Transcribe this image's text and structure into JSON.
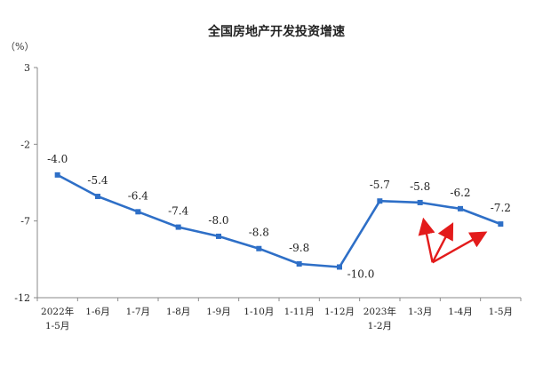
{
  "chart_data": {
    "type": "line",
    "title": "全国房地产开发投资增速",
    "unit": "（%）",
    "x": [
      [
        "2022年",
        "1-5月"
      ],
      [
        "1-6月"
      ],
      [
        "1-7月"
      ],
      [
        "1-8月"
      ],
      [
        "1-9月"
      ],
      [
        "1-10月"
      ],
      [
        "1-11月"
      ],
      [
        "1-12月"
      ],
      [
        "2023年",
        "1-2月"
      ],
      [
        "1-3月"
      ],
      [
        "1-4月"
      ],
      [
        "1-5月"
      ]
    ],
    "series": [
      {
        "values": [
          -4.0,
          -5.4,
          -6.4,
          -7.4,
          -8.0,
          -8.8,
          -9.8,
          -10.0,
          -5.7,
          -5.8,
          -6.2,
          -7.2
        ],
        "labels": [
          "-4.0",
          "-5.4",
          "-6.4",
          "-7.4",
          "-8.0",
          "-8.8",
          "-9.8",
          "-10.0",
          "-5.7",
          "-5.8",
          "-6.2",
          "-7.2"
        ],
        "color": "#2e6fc7"
      }
    ],
    "yticks": [
      3,
      -2,
      -7,
      -12
    ],
    "ylim": [
      -12,
      3
    ],
    "grid": false,
    "annotation": {
      "type": "arrows",
      "color": "#e31b1b",
      "targets": [
        9,
        10,
        11
      ]
    }
  }
}
